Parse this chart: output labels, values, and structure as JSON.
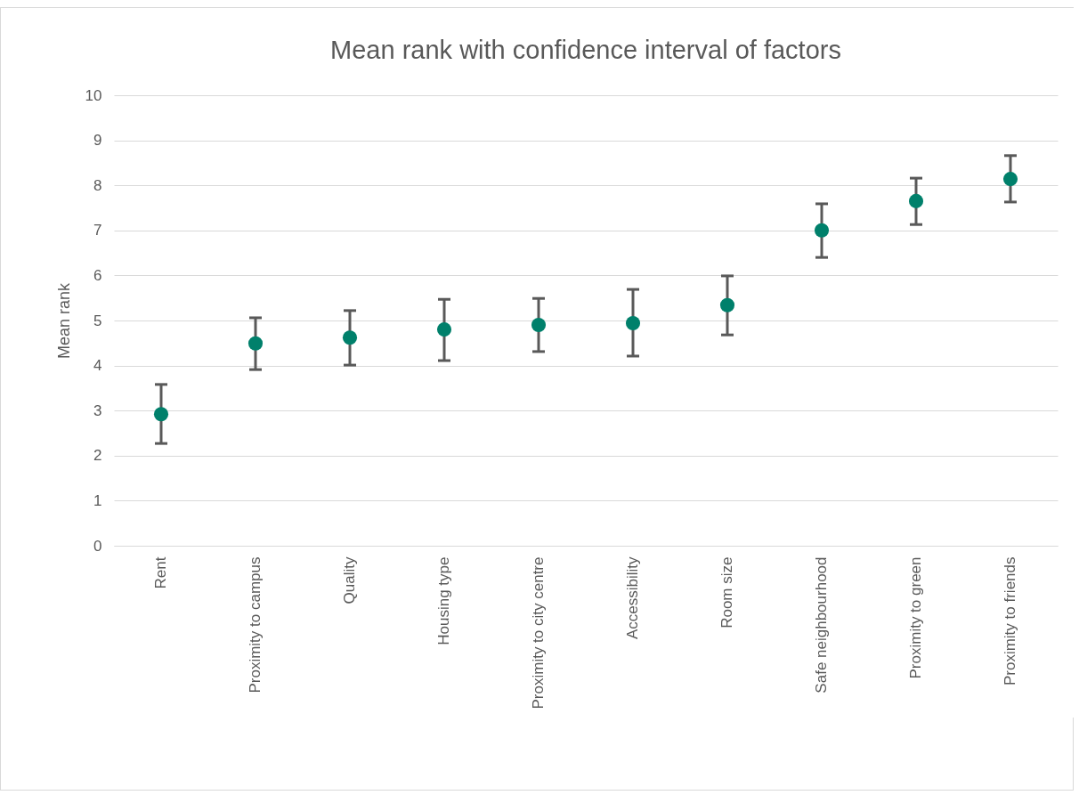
{
  "chart_data": {
    "type": "scatter",
    "title": "Mean rank with confidence interval of factors",
    "ylabel": "Mean rank",
    "categories": [
      "Rent",
      "Proximity to campus",
      "Quality",
      "Housing type",
      "Proximity to city centre",
      "Accessibility",
      "Room size",
      "Safe neighbourhood",
      "Proximity to green",
      "Proximity to friends"
    ],
    "series": [
      {
        "color": "#00806b",
        "values": [
          2.92,
          4.49,
          4.62,
          4.8,
          4.9,
          4.94,
          5.34,
          7.0,
          7.65,
          8.14
        ],
        "errors": [
          [
            2.27,
            3.58
          ],
          [
            3.91,
            5.06
          ],
          [
            4.01,
            5.22
          ],
          [
            4.11,
            5.47
          ],
          [
            4.31,
            5.49
          ],
          [
            4.21,
            5.69
          ],
          [
            4.68,
            5.99
          ],
          [
            6.4,
            7.59
          ],
          [
            7.13,
            8.16
          ],
          [
            7.63,
            8.66
          ]
        ]
      }
    ],
    "ylim": [
      0,
      10
    ],
    "yticks": [
      0,
      1,
      2,
      3,
      4,
      5,
      6,
      7,
      8,
      9,
      10
    ],
    "grid": "y",
    "marker": "circle",
    "legend": false
  }
}
